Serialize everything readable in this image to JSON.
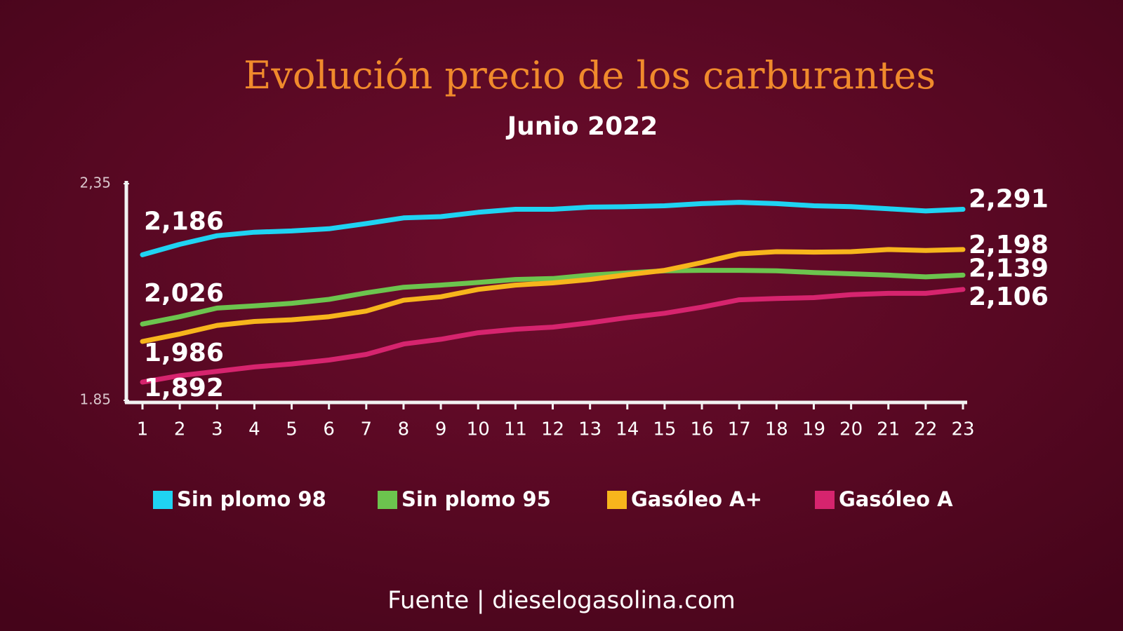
{
  "chart_data": {
    "type": "line",
    "title": "Evolución precio de los carburantes",
    "subtitle": "Junio 2022",
    "source": "Fuente | dieselogasolina.com",
    "x": [
      1,
      2,
      3,
      4,
      5,
      6,
      7,
      8,
      9,
      10,
      11,
      12,
      13,
      14,
      15,
      16,
      17,
      18,
      19,
      20,
      21,
      22,
      23
    ],
    "xlim": [
      1,
      23
    ],
    "xticks": [
      1,
      2,
      3,
      4,
      5,
      6,
      7,
      8,
      9,
      10,
      11,
      12,
      13,
      14,
      15,
      16,
      17,
      18,
      19,
      20,
      21,
      22,
      23
    ],
    "ylim": [
      1.85,
      2.35
    ],
    "yticks": [
      {
        "value": 1.85,
        "label": "1.85"
      },
      {
        "value": 2.35,
        "label": "2,35"
      }
    ],
    "grid": false,
    "legend": "bottom",
    "series": [
      {
        "name": "Sin plomo 98",
        "color": "#1fd3f2",
        "values": [
          2.186,
          2.21,
          2.23,
          2.238,
          2.241,
          2.246,
          2.258,
          2.271,
          2.274,
          2.284,
          2.291,
          2.291,
          2.296,
          2.297,
          2.299,
          2.304,
          2.307,
          2.304,
          2.299,
          2.297,
          2.292,
          2.287,
          2.291
        ],
        "value_labels": [
          "2,186",
          null,
          null,
          null,
          null,
          null,
          null,
          null,
          null,
          null,
          null,
          null,
          null,
          null,
          null,
          null,
          null,
          null,
          null,
          null,
          null,
          null,
          "2,291"
        ]
      },
      {
        "name": "Sin plomo 95",
        "color": "#6cc44e",
        "values": [
          2.026,
          2.043,
          2.063,
          2.068,
          2.074,
          2.083,
          2.098,
          2.111,
          2.116,
          2.122,
          2.129,
          2.131,
          2.139,
          2.144,
          2.149,
          2.15,
          2.15,
          2.149,
          2.145,
          2.142,
          2.139,
          2.135,
          2.139
        ],
        "value_labels": [
          "2,026",
          null,
          null,
          null,
          null,
          null,
          null,
          null,
          null,
          null,
          null,
          null,
          null,
          null,
          null,
          null,
          null,
          null,
          null,
          null,
          null,
          null,
          "2,139"
        ]
      },
      {
        "name": "Gasóleo A+",
        "color": "#f7b51c",
        "values": [
          1.986,
          2.003,
          2.023,
          2.032,
          2.036,
          2.043,
          2.056,
          2.081,
          2.089,
          2.106,
          2.116,
          2.121,
          2.129,
          2.14,
          2.15,
          2.168,
          2.188,
          2.193,
          2.192,
          2.193,
          2.198,
          2.196,
          2.198
        ],
        "value_labels": [
          "1,986",
          null,
          null,
          null,
          null,
          null,
          null,
          null,
          null,
          null,
          null,
          null,
          null,
          null,
          null,
          null,
          null,
          null,
          null,
          null,
          null,
          null,
          "2,198"
        ]
      },
      {
        "name": "Gasóleo A",
        "color": "#d6246e",
        "values": [
          1.892,
          1.907,
          1.917,
          1.927,
          1.934,
          1.943,
          1.956,
          1.98,
          1.991,
          2.006,
          2.014,
          2.019,
          2.029,
          2.041,
          2.051,
          2.065,
          2.082,
          2.085,
          2.087,
          2.094,
          2.097,
          2.097,
          2.106
        ],
        "value_labels": [
          "1,892",
          null,
          null,
          null,
          null,
          null,
          null,
          null,
          null,
          null,
          null,
          null,
          null,
          null,
          null,
          null,
          null,
          null,
          null,
          null,
          null,
          null,
          "2,106"
        ]
      }
    ]
  }
}
